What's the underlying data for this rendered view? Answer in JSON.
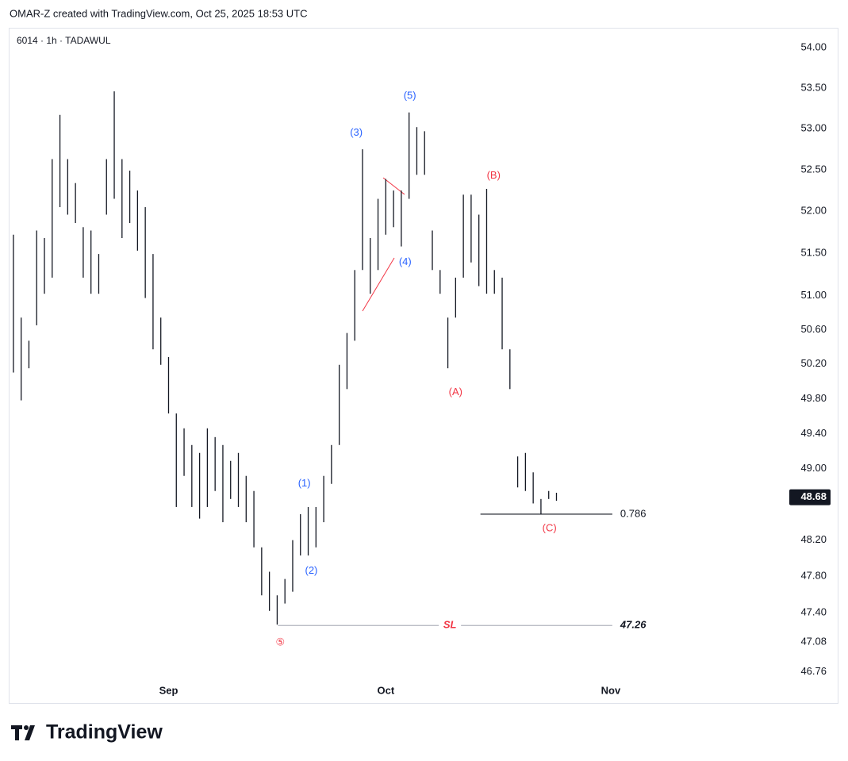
{
  "chart_data": {
    "type": "ohlc",
    "title": "OMAR-Z created with TradingView.com, Oct 25, 2025 18:53 UTC",
    "subtitle": "6014 · 1h · TADAWUL",
    "brand": "TradingView",
    "color": "#131722",
    "log": true,
    "grid": false,
    "categories": [
      null,
      null,
      null,
      null,
      null,
      null,
      null,
      null,
      null,
      null,
      null,
      null,
      null,
      null,
      null,
      null,
      null,
      null,
      null,
      null,
      "Sep",
      null,
      null,
      null,
      null,
      null,
      null,
      null,
      null,
      null,
      null,
      null,
      null,
      null,
      null,
      null,
      null,
      null,
      null,
      null,
      null,
      null,
      null,
      null,
      null,
      null,
      null,
      null,
      "Oct",
      null,
      null,
      null,
      null,
      null,
      null,
      null,
      null,
      null,
      null,
      null,
      null,
      null,
      null,
      null,
      null,
      null,
      null,
      null,
      null,
      null,
      null,
      null,
      null,
      null,
      null,
      null,
      null,
      "Nov",
      null,
      null,
      null,
      null,
      null,
      null,
      null,
      null,
      null,
      null,
      null,
      null,
      null,
      null,
      null,
      null,
      null,
      null,
      null,
      null,
      null,
      null
    ],
    "high": [
      51.72,
      50.74,
      50.47,
      51.77,
      51.68,
      52.63,
      53.17,
      52.63,
      52.34,
      51.81,
      51.77,
      51.49,
      52.63,
      53.46,
      52.63,
      52.49,
      52.25,
      52.05,
      51.49,
      50.74,
      50.28,
      49.63,
      49.46,
      49.27,
      49.18,
      49.46,
      49.36,
      49.27,
      49.09,
      49.18,
      48.92,
      48.75,
      48.12,
      47.85,
      47.59,
      47.77,
      48.2,
      48.49,
      48.57,
      48.57,
      48.92,
      49.27,
      50.19,
      50.56,
      51.3,
      52.75,
      51.68,
      52.15,
      52.39,
      52.25,
      52.25,
      53.2,
      53.02,
      52.97,
      51.77,
      51.3,
      50.74,
      51.21,
      52.2,
      52.2,
      51.96,
      52.27,
      51.3,
      51.21,
      50.37,
      49.14,
      49.18,
      48.96,
      48.66,
      48.75,
      48.73,
      null,
      null,
      null,
      null,
      null,
      null,
      null,
      null,
      null,
      null,
      null,
      null,
      null,
      null,
      null,
      null,
      null,
      null,
      null,
      null,
      null,
      null,
      null,
      null,
      null,
      null,
      null,
      null,
      null
    ],
    "low": [
      50.1,
      49.78,
      50.15,
      50.65,
      51.02,
      51.21,
      52.05,
      51.96,
      51.86,
      51.21,
      51.02,
      51.02,
      51.96,
      52.15,
      51.68,
      51.86,
      51.53,
      50.97,
      50.37,
      50.19,
      49.63,
      48.57,
      48.92,
      48.57,
      48.44,
      48.57,
      48.75,
      48.4,
      48.66,
      48.57,
      48.4,
      48.12,
      47.59,
      47.42,
      47.27,
      47.5,
      47.63,
      48.03,
      48.03,
      48.12,
      48.4,
      48.83,
      49.27,
      49.91,
      50.47,
      51.3,
      51.02,
      51.3,
      51.72,
      51.81,
      51.58,
      52.15,
      52.44,
      52.44,
      51.3,
      51.02,
      50.15,
      50.74,
      51.21,
      51.39,
      51.11,
      51.02,
      51.02,
      50.37,
      49.91,
      48.79,
      48.75,
      48.61,
      48.49,
      48.66,
      48.64,
      null,
      null,
      null,
      null,
      null,
      null,
      null,
      null,
      null,
      null,
      null,
      null,
      null,
      null,
      null,
      null,
      null,
      null,
      null,
      null,
      null,
      null,
      null,
      null,
      null,
      null,
      null,
      null,
      null
    ],
    "ylim": [
      46.43,
      54.2
    ],
    "yticks": [
      {
        "value": 54,
        "label": "54.00"
      },
      {
        "value": 53.5,
        "label": "53.50"
      },
      {
        "value": 53,
        "label": "53.00"
      },
      {
        "value": 52.5,
        "label": "52.50"
      },
      {
        "value": 52,
        "label": "52.00"
      },
      {
        "value": 51.5,
        "label": "51.50"
      },
      {
        "value": 51,
        "label": "51.00"
      },
      {
        "value": 50.6,
        "label": "50.60"
      },
      {
        "value": 50.2,
        "label": "50.20"
      },
      {
        "value": 49.8,
        "label": "49.80"
      },
      {
        "value": 49.4,
        "label": "49.40"
      },
      {
        "value": 49,
        "label": "49.00"
      },
      {
        "value": 48.2,
        "label": "48.20"
      },
      {
        "value": 47.8,
        "label": "47.80"
      },
      {
        "value": 47.4,
        "label": "47.40"
      },
      47.08,
      46.76
    ],
    "last_price": 48.68,
    "annotations": [
      {
        "text": "(1)",
        "x": 37.5,
        "y": 48.83,
        "color": "#2962ff"
      },
      {
        "text": "(2)",
        "x": 38.4,
        "y": 47.86,
        "color": "#2962ff"
      },
      {
        "text": "(3)",
        "x": 44.2,
        "y": 52.95,
        "color": "#2962ff"
      },
      {
        "text": "(4)",
        "x": 50.5,
        "y": 51.39,
        "color": "#2962ff"
      },
      {
        "text": "(5)",
        "x": 51.1,
        "y": 53.4,
        "color": "#2962ff"
      },
      {
        "text": "(A)",
        "x": 57,
        "y": 49.87,
        "color": "#f23645"
      },
      {
        "text": "(B)",
        "x": 61.9,
        "y": 52.43,
        "color": "#f23645"
      },
      {
        "text": "(C)",
        "x": 69.1,
        "y": 48.33,
        "color": "#f23645"
      },
      {
        "text": "⑤",
        "x": 34.4,
        "y": 47.07,
        "color": "#f23645"
      }
    ],
    "levels": [
      {
        "label": 0.786,
        "price": 48.49,
        "from": 60.2,
        "to": 77.2,
        "color": "#131722"
      },
      {
        "label": 47.26,
        "price": 47.26,
        "from": 34.1,
        "to": 77.2,
        "color": "#b2b5be",
        "note": "SL"
      }
    ]
  }
}
